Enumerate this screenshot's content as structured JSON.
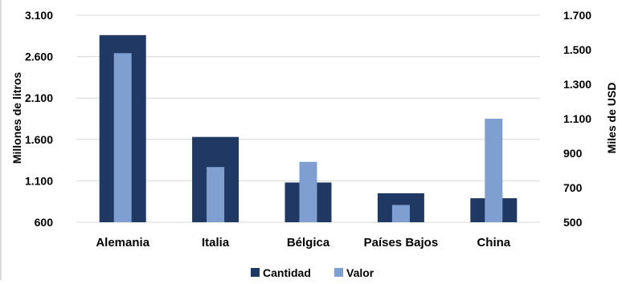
{
  "chart_data": {
    "type": "bar",
    "categories": [
      "Alemania",
      "Italia",
      "Bélgica",
      "Países Bajos",
      "China"
    ],
    "series": [
      {
        "name": "Cantidad",
        "axis": "left",
        "color": "#203864",
        "values": [
          2860,
          1630,
          1080,
          950,
          890
        ]
      },
      {
        "name": "Valor",
        "axis": "right",
        "color": "#7f9fd1",
        "values": [
          1480,
          820,
          850,
          600,
          1100
        ]
      }
    ],
    "ylabel": "Millones de litros",
    "y2label": "Miles de USD",
    "ylim": [
      600,
      3100
    ],
    "y2lim": [
      500,
      1700
    ],
    "yticks": [
      "600",
      "1.100",
      "1.600",
      "2.100",
      "2.600",
      "3.100"
    ],
    "y2ticks": [
      "500",
      "700",
      "900",
      "1.100",
      "1.300",
      "1.500",
      "1.700"
    ],
    "grid": true,
    "legend": "bottom"
  }
}
